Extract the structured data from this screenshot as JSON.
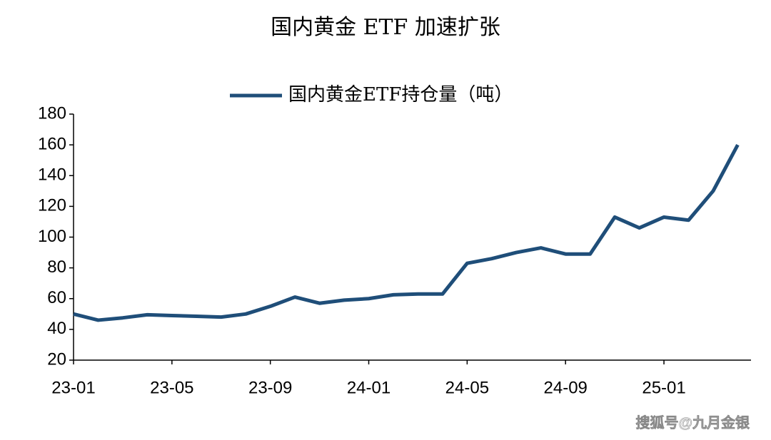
{
  "chart_data": {
    "type": "line",
    "title": "国内黄金 ETF 加速扩张",
    "categories": [
      "23-01",
      null,
      null,
      null,
      "23-05",
      null,
      null,
      null,
      "23-09",
      null,
      null,
      null,
      "24-01",
      null,
      null,
      null,
      "24-05",
      null,
      null,
      null,
      "24-09",
      null,
      null,
      null,
      "25-01",
      null,
      null,
      null
    ],
    "series": [
      {
        "name": "国内黄金ETF持仓量（吨）",
        "color": "#1f4e79",
        "values": [
          50,
          46,
          47.5,
          49.5,
          49,
          48.5,
          48,
          50,
          55,
          61,
          57,
          59,
          60,
          62.5,
          63,
          63,
          83,
          86,
          90,
          93,
          89,
          89,
          113,
          106,
          113,
          111,
          130,
          160
        ]
      }
    ],
    "ylim": [
      20,
      180
    ],
    "yticks": [
      20,
      40,
      60,
      80,
      100,
      120,
      140,
      160,
      180
    ],
    "watermark": "搜狐号@九月金银"
  }
}
